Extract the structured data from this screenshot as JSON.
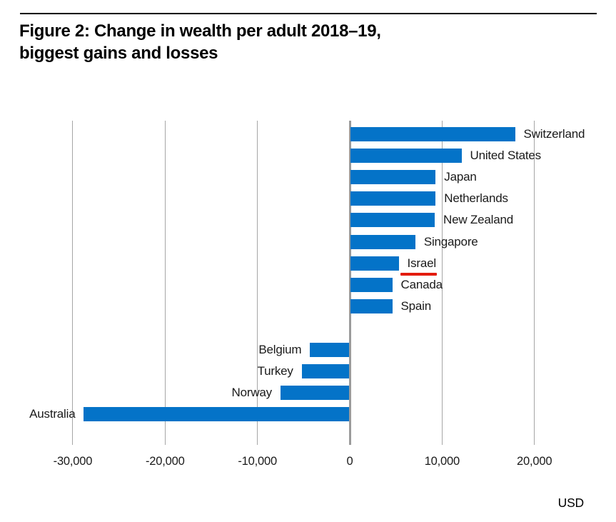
{
  "header": {
    "title_line1": "Figure 2: Change in wealth per adult 2018–19,",
    "title_line2": "biggest gains and losses"
  },
  "chart_data": {
    "type": "bar",
    "orientation": "horizontal",
    "title": "Figure 2: Change in wealth per adult 2018–19, biggest gains and losses",
    "xlabel": "USD",
    "categories": [
      "Switzerland",
      "United States",
      "Japan",
      "Netherlands",
      "New Zealand",
      "Singapore",
      "Israel",
      "Canada",
      "Spain",
      "Belgium",
      "Turkey",
      "Norway",
      "Australia"
    ],
    "values": [
      17900,
      12100,
      9300,
      9300,
      9200,
      7100,
      5300,
      4600,
      4600,
      -4300,
      -5200,
      -7500,
      -28800
    ],
    "x_ticks": [
      -30000,
      -20000,
      -10000,
      0,
      10000,
      20000
    ],
    "x_tick_labels": [
      "-30,000",
      "-20,000",
      "-10,000",
      "0",
      "10,000",
      "20,000"
    ],
    "xlim": [
      -35000,
      27000
    ],
    "grid": true,
    "legend": false,
    "group_gap_after_index": 8,
    "annotations": [
      {
        "target": "Israel",
        "type": "underline"
      }
    ],
    "colors": {
      "bar": "#0473c8",
      "gridline": "#a6a6a6",
      "zero_axis": "#9b9b9b",
      "label_text": "#1a1a1a",
      "annotation_red": "#e31b0c"
    }
  }
}
